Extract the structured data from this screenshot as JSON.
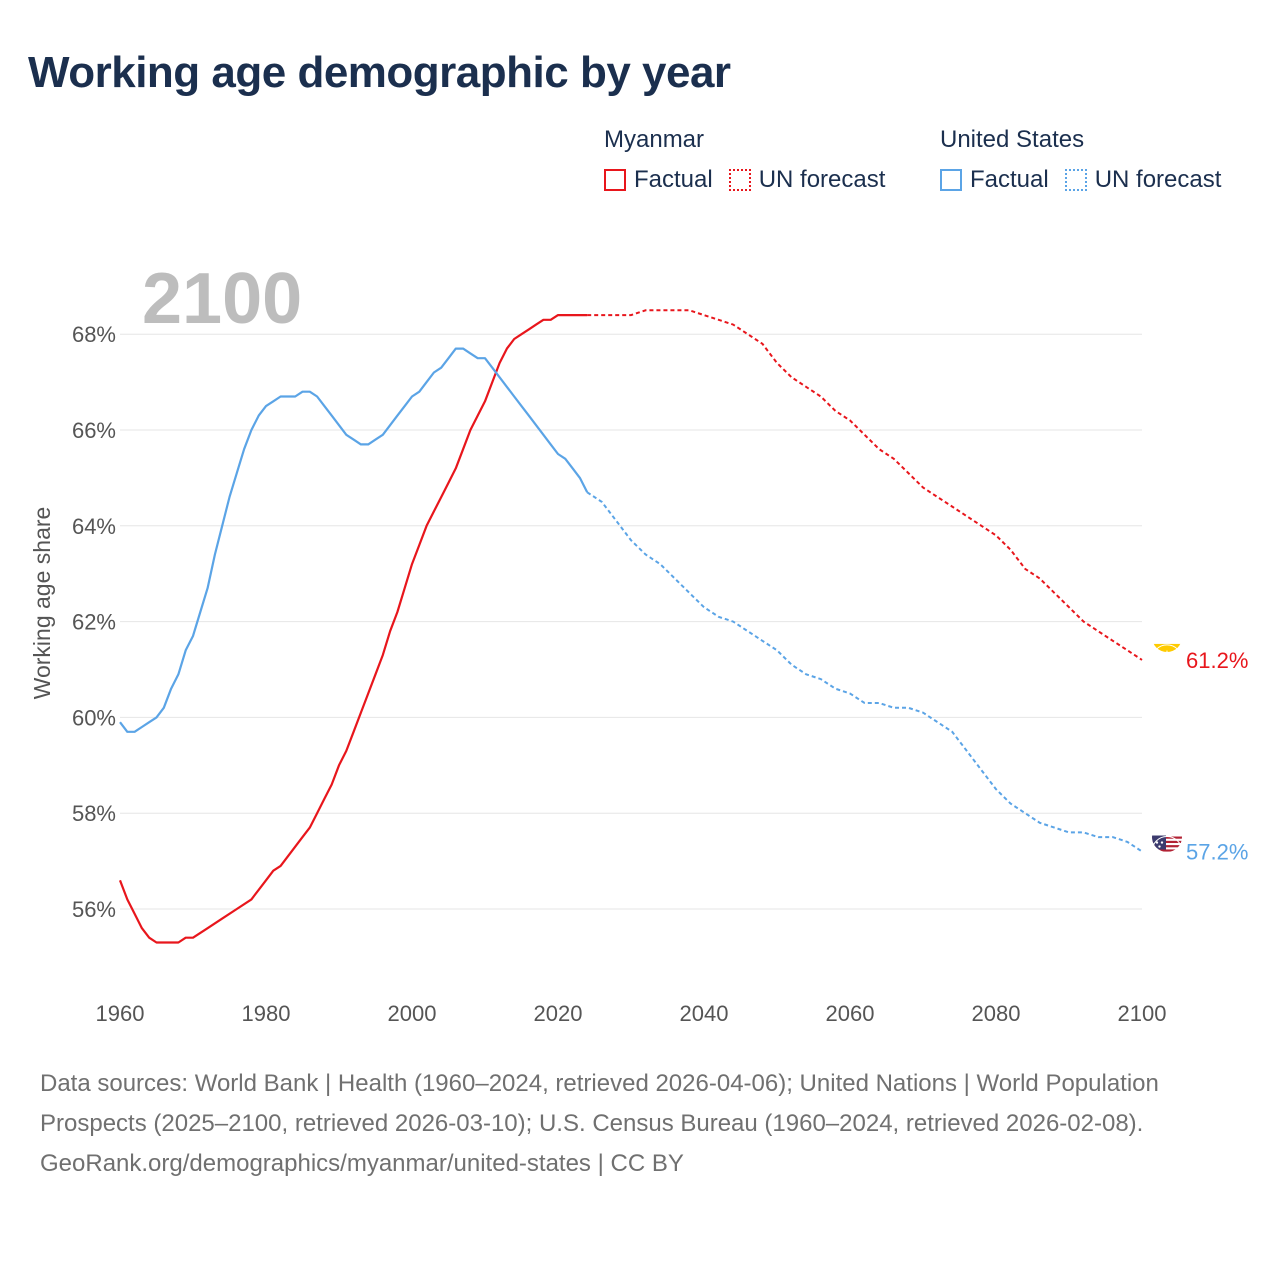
{
  "title": "Working age demographic by year",
  "legend": {
    "groups": [
      {
        "name": "Myanmar",
        "color": "#e8161c",
        "factual_label": "Factual",
        "forecast_label": "UN forecast"
      },
      {
        "name": "United States",
        "color": "#5ba4e6",
        "factual_label": "Factual",
        "forecast_label": "UN forecast"
      }
    ]
  },
  "footer": {
    "sources": "Data sources: World Bank | Health (1960–2024, retrieved 2026-04-06); United Nations | World Population Prospects (2025–2100, retrieved 2026-03-10); U.S. Census Bureau (1960–2024, retrieved 2026-02-08).",
    "link": "GeoRank.org/demographics/myanmar/united-states | CC BY"
  },
  "chart_data": {
    "type": "line",
    "title": "Working age demographic by year",
    "xlabel": "",
    "ylabel": "Working age share",
    "xlim": [
      1960,
      2100
    ],
    "ylim": [
      54.1,
      69.8
    ],
    "x_ticks": [
      1960,
      1980,
      2000,
      2020,
      2040,
      2060,
      2080,
      2100
    ],
    "y_ticks": [
      56,
      58,
      60,
      62,
      64,
      66,
      68
    ],
    "y_tick_labels": [
      "56%",
      "58%",
      "60%",
      "62%",
      "64%",
      "66%",
      "68%"
    ],
    "grid": true,
    "year_label": "2100",
    "forecast_start_year": 2024,
    "series": [
      {
        "name": "Myanmar",
        "color": "#e8161c",
        "end_label": "61.2%",
        "flag_icon": "myanmar-flag-icon",
        "points": [
          [
            1960,
            56.6
          ],
          [
            1961,
            56.2
          ],
          [
            1962,
            55.9
          ],
          [
            1963,
            55.6
          ],
          [
            1964,
            55.4
          ],
          [
            1965,
            55.3
          ],
          [
            1966,
            55.3
          ],
          [
            1967,
            55.3
          ],
          [
            1968,
            55.3
          ],
          [
            1969,
            55.4
          ],
          [
            1970,
            55.4
          ],
          [
            1972,
            55.6
          ],
          [
            1974,
            55.8
          ],
          [
            1976,
            56.0
          ],
          [
            1978,
            56.2
          ],
          [
            1980,
            56.6
          ],
          [
            1981,
            56.8
          ],
          [
            1982,
            56.9
          ],
          [
            1983,
            57.1
          ],
          [
            1984,
            57.3
          ],
          [
            1985,
            57.5
          ],
          [
            1986,
            57.7
          ],
          [
            1987,
            58.0
          ],
          [
            1988,
            58.3
          ],
          [
            1989,
            58.6
          ],
          [
            1990,
            59.0
          ],
          [
            1991,
            59.3
          ],
          [
            1992,
            59.7
          ],
          [
            1993,
            60.1
          ],
          [
            1994,
            60.5
          ],
          [
            1995,
            60.9
          ],
          [
            1996,
            61.3
          ],
          [
            1997,
            61.8
          ],
          [
            1998,
            62.2
          ],
          [
            1999,
            62.7
          ],
          [
            2000,
            63.2
          ],
          [
            2001,
            63.6
          ],
          [
            2002,
            64.0
          ],
          [
            2003,
            64.3
          ],
          [
            2004,
            64.6
          ],
          [
            2005,
            64.9
          ],
          [
            2006,
            65.2
          ],
          [
            2007,
            65.6
          ],
          [
            2008,
            66.0
          ],
          [
            2009,
            66.3
          ],
          [
            2010,
            66.6
          ],
          [
            2011,
            67.0
          ],
          [
            2012,
            67.4
          ],
          [
            2013,
            67.7
          ],
          [
            2014,
            67.9
          ],
          [
            2015,
            68.0
          ],
          [
            2016,
            68.1
          ],
          [
            2017,
            68.2
          ],
          [
            2018,
            68.3
          ],
          [
            2019,
            68.3
          ],
          [
            2020,
            68.4
          ],
          [
            2021,
            68.4
          ],
          [
            2022,
            68.4
          ],
          [
            2023,
            68.4
          ],
          [
            2024,
            68.4
          ],
          [
            2026,
            68.4
          ],
          [
            2028,
            68.4
          ],
          [
            2030,
            68.4
          ],
          [
            2032,
            68.5
          ],
          [
            2034,
            68.5
          ],
          [
            2036,
            68.5
          ],
          [
            2038,
            68.5
          ],
          [
            2040,
            68.4
          ],
          [
            2042,
            68.3
          ],
          [
            2044,
            68.2
          ],
          [
            2046,
            68.0
          ],
          [
            2048,
            67.8
          ],
          [
            2050,
            67.4
          ],
          [
            2052,
            67.1
          ],
          [
            2054,
            66.9
          ],
          [
            2056,
            66.7
          ],
          [
            2058,
            66.4
          ],
          [
            2060,
            66.2
          ],
          [
            2062,
            65.9
          ],
          [
            2064,
            65.6
          ],
          [
            2066,
            65.4
          ],
          [
            2068,
            65.1
          ],
          [
            2070,
            64.8
          ],
          [
            2072,
            64.6
          ],
          [
            2074,
            64.4
          ],
          [
            2076,
            64.2
          ],
          [
            2078,
            64.0
          ],
          [
            2080,
            63.8
          ],
          [
            2082,
            63.5
          ],
          [
            2084,
            63.1
          ],
          [
            2086,
            62.9
          ],
          [
            2088,
            62.6
          ],
          [
            2090,
            62.3
          ],
          [
            2092,
            62.0
          ],
          [
            2094,
            61.8
          ],
          [
            2096,
            61.6
          ],
          [
            2098,
            61.4
          ],
          [
            2100,
            61.2
          ]
        ]
      },
      {
        "name": "United States",
        "color": "#5ba4e6",
        "end_label": "57.2%",
        "flag_icon": "us-flag-icon",
        "points": [
          [
            1960,
            59.9
          ],
          [
            1961,
            59.7
          ],
          [
            1962,
            59.7
          ],
          [
            1963,
            59.8
          ],
          [
            1964,
            59.9
          ],
          [
            1965,
            60.0
          ],
          [
            1966,
            60.2
          ],
          [
            1967,
            60.6
          ],
          [
            1968,
            60.9
          ],
          [
            1969,
            61.4
          ],
          [
            1970,
            61.7
          ],
          [
            1971,
            62.2
          ],
          [
            1972,
            62.7
          ],
          [
            1973,
            63.4
          ],
          [
            1974,
            64.0
          ],
          [
            1975,
            64.6
          ],
          [
            1976,
            65.1
          ],
          [
            1977,
            65.6
          ],
          [
            1978,
            66.0
          ],
          [
            1979,
            66.3
          ],
          [
            1980,
            66.5
          ],
          [
            1981,
            66.6
          ],
          [
            1982,
            66.7
          ],
          [
            1983,
            66.7
          ],
          [
            1984,
            66.7
          ],
          [
            1985,
            66.8
          ],
          [
            1986,
            66.8
          ],
          [
            1987,
            66.7
          ],
          [
            1988,
            66.5
          ],
          [
            1989,
            66.3
          ],
          [
            1990,
            66.1
          ],
          [
            1991,
            65.9
          ],
          [
            1992,
            65.8
          ],
          [
            1993,
            65.7
          ],
          [
            1994,
            65.7
          ],
          [
            1995,
            65.8
          ],
          [
            1996,
            65.9
          ],
          [
            1997,
            66.1
          ],
          [
            1998,
            66.3
          ],
          [
            1999,
            66.5
          ],
          [
            2000,
            66.7
          ],
          [
            2001,
            66.8
          ],
          [
            2002,
            67.0
          ],
          [
            2003,
            67.2
          ],
          [
            2004,
            67.3
          ],
          [
            2005,
            67.5
          ],
          [
            2006,
            67.7
          ],
          [
            2007,
            67.7
          ],
          [
            2008,
            67.6
          ],
          [
            2009,
            67.5
          ],
          [
            2010,
            67.5
          ],
          [
            2011,
            67.3
          ],
          [
            2012,
            67.1
          ],
          [
            2013,
            66.9
          ],
          [
            2014,
            66.7
          ],
          [
            2015,
            66.5
          ],
          [
            2016,
            66.3
          ],
          [
            2017,
            66.1
          ],
          [
            2018,
            65.9
          ],
          [
            2019,
            65.7
          ],
          [
            2020,
            65.5
          ],
          [
            2021,
            65.4
          ],
          [
            2022,
            65.2
          ],
          [
            2023,
            65.0
          ],
          [
            2024,
            64.7
          ],
          [
            2026,
            64.5
          ],
          [
            2028,
            64.1
          ],
          [
            2030,
            63.7
          ],
          [
            2032,
            63.4
          ],
          [
            2034,
            63.2
          ],
          [
            2036,
            62.9
          ],
          [
            2038,
            62.6
          ],
          [
            2040,
            62.3
          ],
          [
            2042,
            62.1
          ],
          [
            2044,
            62.0
          ],
          [
            2046,
            61.8
          ],
          [
            2048,
            61.6
          ],
          [
            2050,
            61.4
          ],
          [
            2052,
            61.1
          ],
          [
            2054,
            60.9
          ],
          [
            2056,
            60.8
          ],
          [
            2058,
            60.6
          ],
          [
            2060,
            60.5
          ],
          [
            2062,
            60.3
          ],
          [
            2064,
            60.3
          ],
          [
            2066,
            60.2
          ],
          [
            2068,
            60.2
          ],
          [
            2070,
            60.1
          ],
          [
            2072,
            59.9
          ],
          [
            2074,
            59.7
          ],
          [
            2076,
            59.3
          ],
          [
            2078,
            58.9
          ],
          [
            2080,
            58.5
          ],
          [
            2082,
            58.2
          ],
          [
            2084,
            58.0
          ],
          [
            2086,
            57.8
          ],
          [
            2088,
            57.7
          ],
          [
            2090,
            57.6
          ],
          [
            2092,
            57.6
          ],
          [
            2094,
            57.5
          ],
          [
            2096,
            57.5
          ],
          [
            2098,
            57.4
          ],
          [
            2100,
            57.2
          ]
        ]
      }
    ]
  }
}
